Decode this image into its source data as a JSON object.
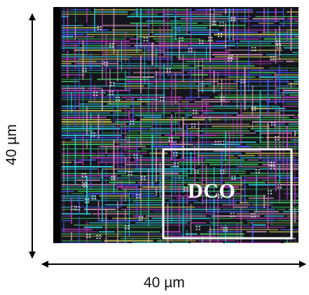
{
  "figure": {
    "horizontal_dimension_label": "40 µm",
    "vertical_dimension_label": "40 µm",
    "region_label": "DCO"
  },
  "colors": {
    "chip_background": "#15161c",
    "left_strip": "#000000",
    "wire_green": "#3cc85a",
    "wire_cyan": "#30d0e0",
    "wire_magenta": "#d040d0",
    "wire_pink": "#e0a0c8",
    "wire_blue": "#4a5cff",
    "wire_yellow": "#c8c850",
    "dco_box": "#ffffff",
    "arrow": "#000000"
  }
}
